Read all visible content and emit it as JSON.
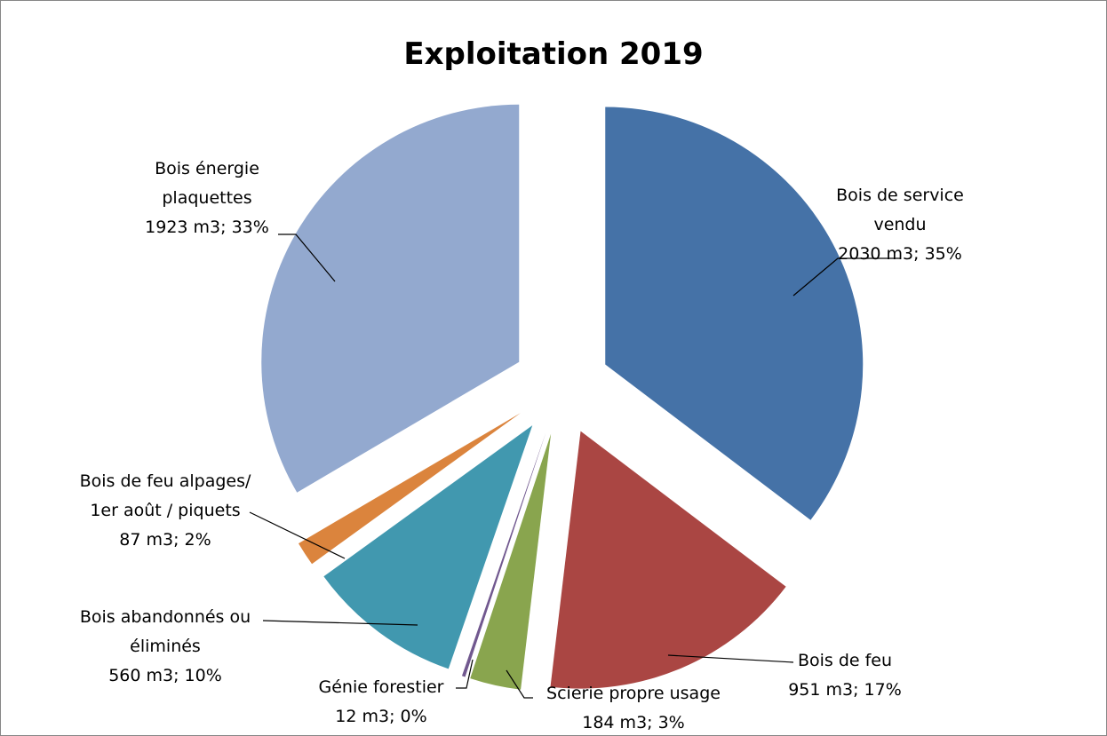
{
  "chart_data": {
    "type": "pie",
    "title": "Exploitation 2019",
    "slices": [
      {
        "category": "Bois de service vendu",
        "label_lines": [
          "Bois de service",
          "vendu",
          "2030 m3; 35%"
        ],
        "value": 2030,
        "percent": 35,
        "color": "#4572A7"
      },
      {
        "category": "Bois de feu",
        "label_lines": [
          "Bois de feu",
          "951 m3; 17%"
        ],
        "value": 951,
        "percent": 17,
        "color": "#AA4643"
      },
      {
        "category": "Scierie propre usage",
        "label_lines": [
          "Scierie propre usage",
          "184 m3; 3%"
        ],
        "value": 184,
        "percent": 3,
        "color": "#89A54E"
      },
      {
        "category": "Génie forestier",
        "label_lines": [
          "Génie forestier",
          "12 m3; 0%"
        ],
        "value": 12,
        "percent": 0,
        "color": "#71588F"
      },
      {
        "category": "Bois abandonnés ou éliminés",
        "label_lines": [
          "Bois abandonnés ou",
          "éliminés",
          "560 m3; 10%"
        ],
        "value": 560,
        "percent": 10,
        "color": "#4198AF"
      },
      {
        "category": "Bois de feu alpages/ 1er août / piquets",
        "label_lines": [
          "Bois de feu alpages/",
          "1er août / piquets",
          "87 m3; 2%"
        ],
        "value": 87,
        "percent": 2,
        "color": "#DB843D"
      },
      {
        "category": "Bois énergie plaquettes",
        "label_lines": [
          "Bois énergie",
          "plaquettes",
          "1923 m3; 33%"
        ],
        "value": 1923,
        "percent": 33,
        "color": "#93A9CF"
      }
    ]
  }
}
